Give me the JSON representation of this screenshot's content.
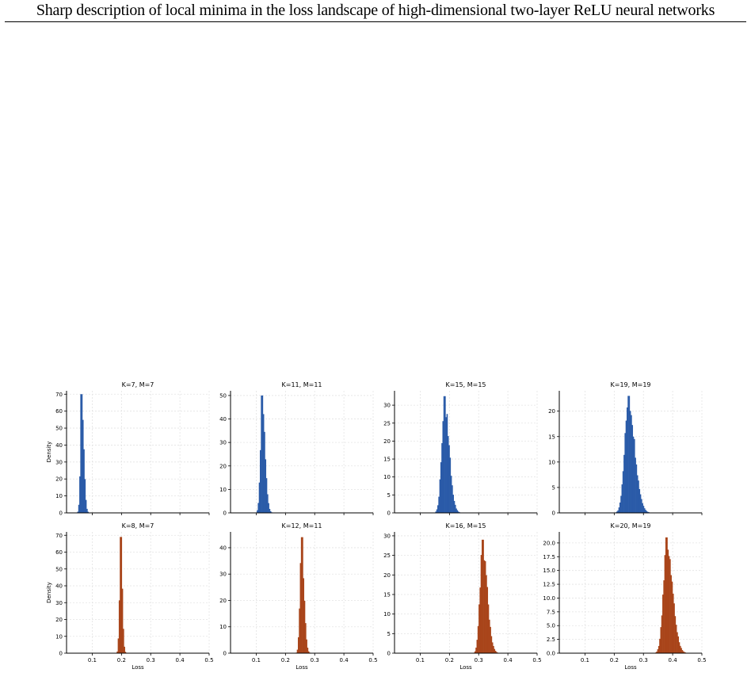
{
  "header": {
    "title": "Sharp description of local minima in the loss landscape of high-dimensional two-layer ReLU neural networks"
  },
  "colors": {
    "top_row": "#2a5ba8",
    "bottom_row": "#a9451a",
    "grid": "#e3e3e3",
    "axis": "#000000"
  },
  "chart_data": [
    {
      "type": "bar",
      "title": "K=7, M=7",
      "ylabel": "Density",
      "xlabel": "",
      "xlim": [
        0.0,
        0.5
      ],
      "ylim": [
        0,
        72
      ],
      "xticks": [
        0.1,
        0.2,
        0.3,
        0.4,
        0.5
      ],
      "xtick_labels": [
        "",
        "",
        "",
        "",
        ""
      ],
      "yticks": [
        0,
        10,
        20,
        30,
        40,
        50,
        60,
        70
      ],
      "ytick_labels": [
        "0",
        "10",
        "20",
        "30",
        "40",
        "50",
        "60",
        "70"
      ],
      "peak": {
        "center": 0.064,
        "height": 70,
        "sigma_left": 0.0045,
        "sigma_right": 0.007
      },
      "series_color": "top_row"
    },
    {
      "type": "bar",
      "title": "K=11, M=11",
      "ylabel": "",
      "xlabel": "",
      "xlim": [
        0.0,
        0.5
      ],
      "ylim": [
        0,
        52
      ],
      "xticks": [
        0.1,
        0.2,
        0.3,
        0.4,
        0.5
      ],
      "xtick_labels": [
        "",
        "",
        "",
        "",
        ""
      ],
      "yticks": [
        0,
        10,
        20,
        30,
        40,
        50
      ],
      "ytick_labels": [
        "0",
        "10",
        "20",
        "30",
        "40",
        "50"
      ],
      "peak": {
        "center": 0.12,
        "height": 50,
        "sigma_left": 0.006,
        "sigma_right": 0.01
      },
      "series_color": "top_row"
    },
    {
      "type": "bar",
      "title": "K=15, M=15",
      "ylabel": "",
      "xlabel": "",
      "xlim": [
        0.0,
        0.5
      ],
      "ylim": [
        0,
        34
      ],
      "xticks": [
        0.1,
        0.2,
        0.3,
        0.4,
        0.5
      ],
      "xtick_labels": [
        "",
        "",
        "",
        "",
        ""
      ],
      "yticks": [
        0,
        5,
        10,
        15,
        20,
        25,
        30
      ],
      "ytick_labels": [
        "0",
        "5",
        "10",
        "15",
        "20",
        "25",
        "30"
      ],
      "peak": {
        "center": 0.183,
        "height": 32.5,
        "sigma_left": 0.01,
        "sigma_right": 0.016
      },
      "series_color": "top_row"
    },
    {
      "type": "bar",
      "title": "K=19, M=19",
      "ylabel": "",
      "xlabel": "",
      "xlim": [
        0.0,
        0.5
      ],
      "ylim": [
        0,
        24
      ],
      "xticks": [
        0.1,
        0.2,
        0.3,
        0.4,
        0.5
      ],
      "xtick_labels": [
        "",
        "",
        "",
        "",
        ""
      ],
      "yticks": [
        0,
        5,
        10,
        15,
        20
      ],
      "ytick_labels": [
        "0",
        "5",
        "10",
        "15",
        "20"
      ],
      "peak": {
        "center": 0.248,
        "height": 23,
        "sigma_left": 0.013,
        "sigma_right": 0.022
      },
      "series_color": "top_row"
    },
    {
      "type": "bar",
      "title": "K=8, M=7",
      "ylabel": "Density",
      "xlabel": "Loss",
      "xlim": [
        0.0,
        0.5
      ],
      "ylim": [
        0,
        72
      ],
      "xticks": [
        0.1,
        0.2,
        0.3,
        0.4,
        0.5
      ],
      "xtick_labels": [
        "0.1",
        "0.2",
        "0.3",
        "0.4",
        "0.5"
      ],
      "yticks": [
        0,
        10,
        20,
        30,
        40,
        50,
        60,
        70
      ],
      "ytick_labels": [
        "0",
        "10",
        "20",
        "30",
        "40",
        "50",
        "60",
        "70"
      ],
      "peak": {
        "center": 0.197,
        "height": 69,
        "sigma_left": 0.004,
        "sigma_right": 0.0055
      },
      "series_color": "bottom_row"
    },
    {
      "type": "bar",
      "title": "K=12, M=11",
      "ylabel": "",
      "xlabel": "Loss",
      "xlim": [
        0.0,
        0.5
      ],
      "ylim": [
        0,
        46
      ],
      "xticks": [
        0.1,
        0.2,
        0.3,
        0.4,
        0.5
      ],
      "xtick_labels": [
        "0.1",
        "0.2",
        "0.3",
        "0.4",
        "0.5"
      ],
      "yticks": [
        0,
        10,
        20,
        30,
        40
      ],
      "ytick_labels": [
        "0",
        "10",
        "20",
        "30",
        "40"
      ],
      "peak": {
        "center": 0.255,
        "height": 44,
        "sigma_left": 0.0055,
        "sigma_right": 0.0085
      },
      "series_color": "bottom_row"
    },
    {
      "type": "bar",
      "title": "K=16, M=15",
      "ylabel": "",
      "xlabel": "Loss",
      "xlim": [
        0.0,
        0.5
      ],
      "ylim": [
        0,
        31
      ],
      "xticks": [
        0.1,
        0.2,
        0.3,
        0.4,
        0.5
      ],
      "xtick_labels": [
        "0.1",
        "0.2",
        "0.3",
        "0.4",
        "0.5"
      ],
      "yticks": [
        0,
        5,
        10,
        15,
        20,
        25,
        30
      ],
      "ytick_labels": [
        "0",
        "5",
        "10",
        "15",
        "20",
        "25",
        "30"
      ],
      "peak": {
        "center": 0.313,
        "height": 29,
        "sigma_left": 0.009,
        "sigma_right": 0.016
      },
      "series_color": "bottom_row"
    },
    {
      "type": "bar",
      "title": "K=20, M=19",
      "ylabel": "",
      "xlabel": "Loss",
      "xlim": [
        0.0,
        0.5
      ],
      "ylim": [
        0,
        22
      ],
      "xticks": [
        0.1,
        0.2,
        0.3,
        0.4,
        0.5
      ],
      "xtick_labels": [
        "0.1",
        "0.2",
        "0.3",
        "0.4",
        "0.5"
      ],
      "yticks": [
        0.0,
        2.5,
        5.0,
        7.5,
        10.0,
        12.5,
        15.0,
        17.5,
        20.0
      ],
      "ytick_labels": [
        "0.0",
        "2.5",
        "5.0",
        "7.5",
        "10.0",
        "12.5",
        "15.0",
        "17.5",
        "20.0"
      ],
      "peak": {
        "center": 0.38,
        "height": 21,
        "sigma_left": 0.012,
        "sigma_right": 0.02
      },
      "series_color": "bottom_row"
    }
  ]
}
